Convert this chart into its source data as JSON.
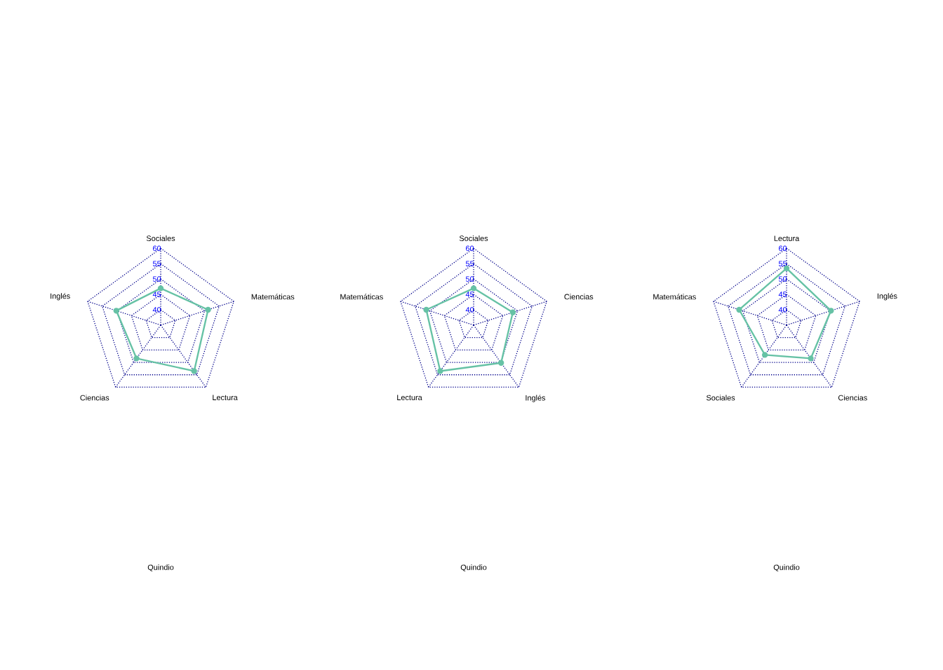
{
  "chart_data": [
    {
      "type": "radar",
      "title": "Quindio",
      "categories": [
        "Sociales",
        "Matemáticas",
        "Lectura",
        "Ciencias",
        "Inglés"
      ],
      "series": [
        {
          "color": "#66c2a5",
          "values": [
            47.0,
            51.2,
            53.5,
            48.4,
            50.2
          ]
        }
      ],
      "ylim": [
        35,
        60
      ],
      "yticks": [
        40,
        45,
        50,
        55,
        60
      ],
      "grid": true,
      "marker": "circle",
      "line_style": "solid"
    },
    {
      "type": "radar",
      "title": "Quindio",
      "categories": [
        "Sociales",
        "Ciencias",
        "Inglés",
        "Lectura",
        "Matemáticas"
      ],
      "series": [
        {
          "color": "#66c2a5",
          "values": [
            47.0,
            48.4,
            50.2,
            53.5,
            51.2
          ]
        }
      ],
      "ylim": [
        35,
        60
      ],
      "yticks": [
        40,
        45,
        50,
        55,
        60
      ],
      "grid": true,
      "marker": "circle",
      "line_style": "solid"
    },
    {
      "type": "radar",
      "title": "Quindio",
      "categories": [
        "Lectura",
        "Inglés",
        "Ciencias",
        "Sociales",
        "Matemáticas"
      ],
      "series": [
        {
          "color": "#66c2a5",
          "values": [
            53.5,
            50.2,
            48.4,
            47.0,
            51.2
          ]
        }
      ],
      "ylim": [
        35,
        60
      ],
      "yticks": [
        40,
        45,
        50,
        55,
        60
      ],
      "grid": true,
      "marker": "circle",
      "line_style": "solid"
    }
  ]
}
